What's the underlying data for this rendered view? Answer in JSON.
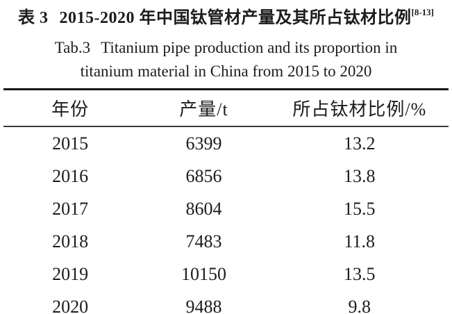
{
  "figure": {
    "caption_zh": {
      "label": "表 3",
      "text": "2015-2020 年中国钛管材产量及其所占钛材比例",
      "ref": "[8-13]"
    },
    "caption_en": {
      "label": "Tab.3",
      "line1": "Titanium pipe production and its proportion in",
      "line2": "titanium material in China from 2015 to 2020"
    }
  },
  "table": {
    "columns": [
      "年份",
      "产量/t",
      "所占钛材比例/%"
    ],
    "rows": [
      {
        "year": "2015",
        "production": "6399",
        "proportion": "13.2"
      },
      {
        "year": "2016",
        "production": "6856",
        "proportion": "13.8"
      },
      {
        "year": "2017",
        "production": "8604",
        "proportion": "15.5"
      },
      {
        "year": "2018",
        "production": "7483",
        "proportion": "11.8"
      },
      {
        "year": "2019",
        "production": "10150",
        "proportion": "13.5"
      },
      {
        "year": "2020",
        "production": "9488",
        "proportion": "9.8"
      }
    ]
  },
  "chart_data": {
    "type": "table",
    "title": "表 3 2015-2020 年中国钛管材产量及其所占钛材比例",
    "columns": [
      "年份",
      "产量/t",
      "所占钛材比例/%"
    ],
    "categories": [
      2015,
      2016,
      2017,
      2018,
      2019,
      2020
    ],
    "series": [
      {
        "name": "产量/t",
        "values": [
          6399,
          6856,
          8604,
          7483,
          10150,
          9488
        ]
      },
      {
        "name": "所占钛材比例/%",
        "values": [
          13.2,
          13.8,
          15.5,
          11.8,
          13.5,
          9.8
        ]
      }
    ]
  }
}
